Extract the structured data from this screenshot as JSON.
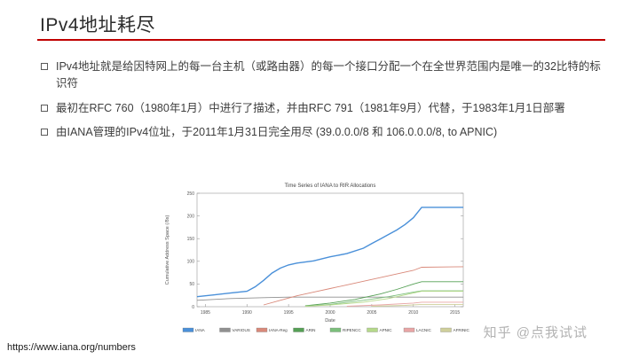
{
  "slide": {
    "title": "IPv4地址耗尽",
    "accent_color": "#c00000",
    "bullets": [
      {
        "text": "IPv4地址就是给因特网上的每一台主机（或路由器）的每一个接口分配一个在全世界范围内是唯一的32比特的标识符"
      },
      {
        "text": "最初在RFC 760（1980年1月）中进行了描述，并由RFC 791（1981年9月）代替，于1983年1月1日部署"
      },
      {
        "text": "由IANA管理的IPv4位址，于2011年1月31日完全用尽 (39.0.0.0/8 和 106.0.0.0/8, to APNIC)"
      }
    ],
    "footer_url": "https://www.iana.org/numbers",
    "watermark": "知乎 @点我试试"
  },
  "chart_data": {
    "type": "line",
    "title": "Time Series of IANA to RIR Allocations",
    "xlabel": "Date",
    "ylabel": "Cumulative Address Space (/8s)",
    "xlim": [
      1984,
      2016
    ],
    "ylim": [
      0,
      250
    ],
    "x_ticks": [
      1985,
      1990,
      1995,
      2000,
      2005,
      2010,
      2015
    ],
    "y_ticks": [
      0,
      50,
      100,
      150,
      200,
      250
    ],
    "grid": false,
    "legend_position": "bottom",
    "series": [
      {
        "name": "IANA",
        "color": "#4a90d9",
        "points": [
          [
            1984,
            22
          ],
          [
            1986,
            26
          ],
          [
            1988,
            30
          ],
          [
            1990,
            34
          ],
          [
            1991,
            44
          ],
          [
            1992,
            58
          ],
          [
            1993,
            74
          ],
          [
            1994,
            85
          ],
          [
            1995,
            92
          ],
          [
            1996,
            96
          ],
          [
            1998,
            101
          ],
          [
            2000,
            110
          ],
          [
            2002,
            117
          ],
          [
            2004,
            129
          ],
          [
            2005,
            139
          ],
          [
            2006,
            149
          ],
          [
            2007,
            159
          ],
          [
            2008,
            169
          ],
          [
            2009,
            181
          ],
          [
            2010,
            196
          ],
          [
            2011,
            219
          ],
          [
            2016,
            219
          ]
        ]
      },
      {
        "name": "VARIOUS",
        "color": "#909090",
        "points": [
          [
            1984,
            14
          ],
          [
            1988,
            18
          ],
          [
            1992,
            20
          ],
          [
            1995,
            21
          ],
          [
            2016,
            21
          ]
        ]
      },
      {
        "name": "IANA-Reg",
        "color": "#d9897a",
        "points": [
          [
            1992,
            4
          ],
          [
            1994,
            14
          ],
          [
            1996,
            24
          ],
          [
            1998,
            32
          ],
          [
            2000,
            40
          ],
          [
            2002,
            48
          ],
          [
            2004,
            56
          ],
          [
            2006,
            64
          ],
          [
            2008,
            72
          ],
          [
            2010,
            80
          ],
          [
            2011,
            87
          ],
          [
            2016,
            88
          ]
        ]
      },
      {
        "name": "ARIN",
        "color": "#55a055",
        "points": [
          [
            1997,
            2
          ],
          [
            2000,
            8
          ],
          [
            2003,
            16
          ],
          [
            2006,
            28
          ],
          [
            2008,
            38
          ],
          [
            2010,
            50
          ],
          [
            2011,
            55
          ],
          [
            2016,
            55
          ]
        ]
      },
      {
        "name": "RIPENCC",
        "color": "#7cbf7c",
        "points": [
          [
            1997,
            1
          ],
          [
            2000,
            5
          ],
          [
            2004,
            14
          ],
          [
            2007,
            22
          ],
          [
            2010,
            32
          ],
          [
            2011,
            35
          ],
          [
            2016,
            35
          ]
        ]
      },
      {
        "name": "APNIC",
        "color": "#b5d98a",
        "points": [
          [
            1997,
            1
          ],
          [
            2000,
            4
          ],
          [
            2004,
            10
          ],
          [
            2007,
            18
          ],
          [
            2010,
            30
          ],
          [
            2011,
            34
          ],
          [
            2016,
            34
          ]
        ]
      },
      {
        "name": "LACNIC",
        "color": "#e8a5a5",
        "points": [
          [
            2002,
            1
          ],
          [
            2006,
            4
          ],
          [
            2010,
            8
          ],
          [
            2011,
            10
          ],
          [
            2016,
            10
          ]
        ]
      },
      {
        "name": "AFRINIC",
        "color": "#cfcf9b",
        "points": [
          [
            2005,
            1
          ],
          [
            2009,
            3
          ],
          [
            2011,
            5
          ],
          [
            2016,
            5
          ]
        ]
      }
    ]
  }
}
